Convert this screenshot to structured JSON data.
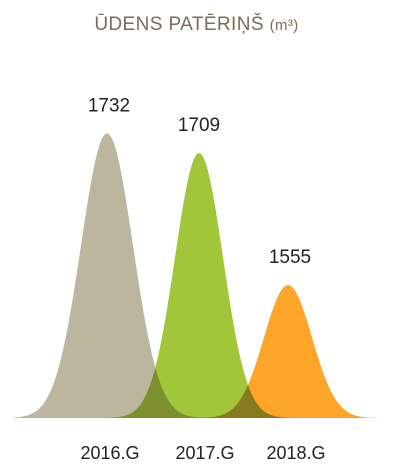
{
  "title": "ŪDENS PATĒRIŅŠ",
  "title_unit": "(m³)",
  "colors": {
    "title": "#7a6c55",
    "series": [
      "#bdb69f",
      "#a2c63a",
      "#fda529"
    ],
    "overlap_1_2": "#7c9030",
    "overlap_2_3": "#8a7a1f",
    "text": "#222222"
  },
  "chart_data": {
    "type": "area",
    "title": "ŪDENS PATĒRIŅŠ (m³)",
    "categories": [
      "2016.G",
      "2017.G",
      "2018.G"
    ],
    "values": [
      1732,
      1709,
      1555
    ],
    "xlabel": "",
    "ylabel": "",
    "ylim": [
      1400,
      1750
    ],
    "grid": false,
    "legend": "none"
  }
}
